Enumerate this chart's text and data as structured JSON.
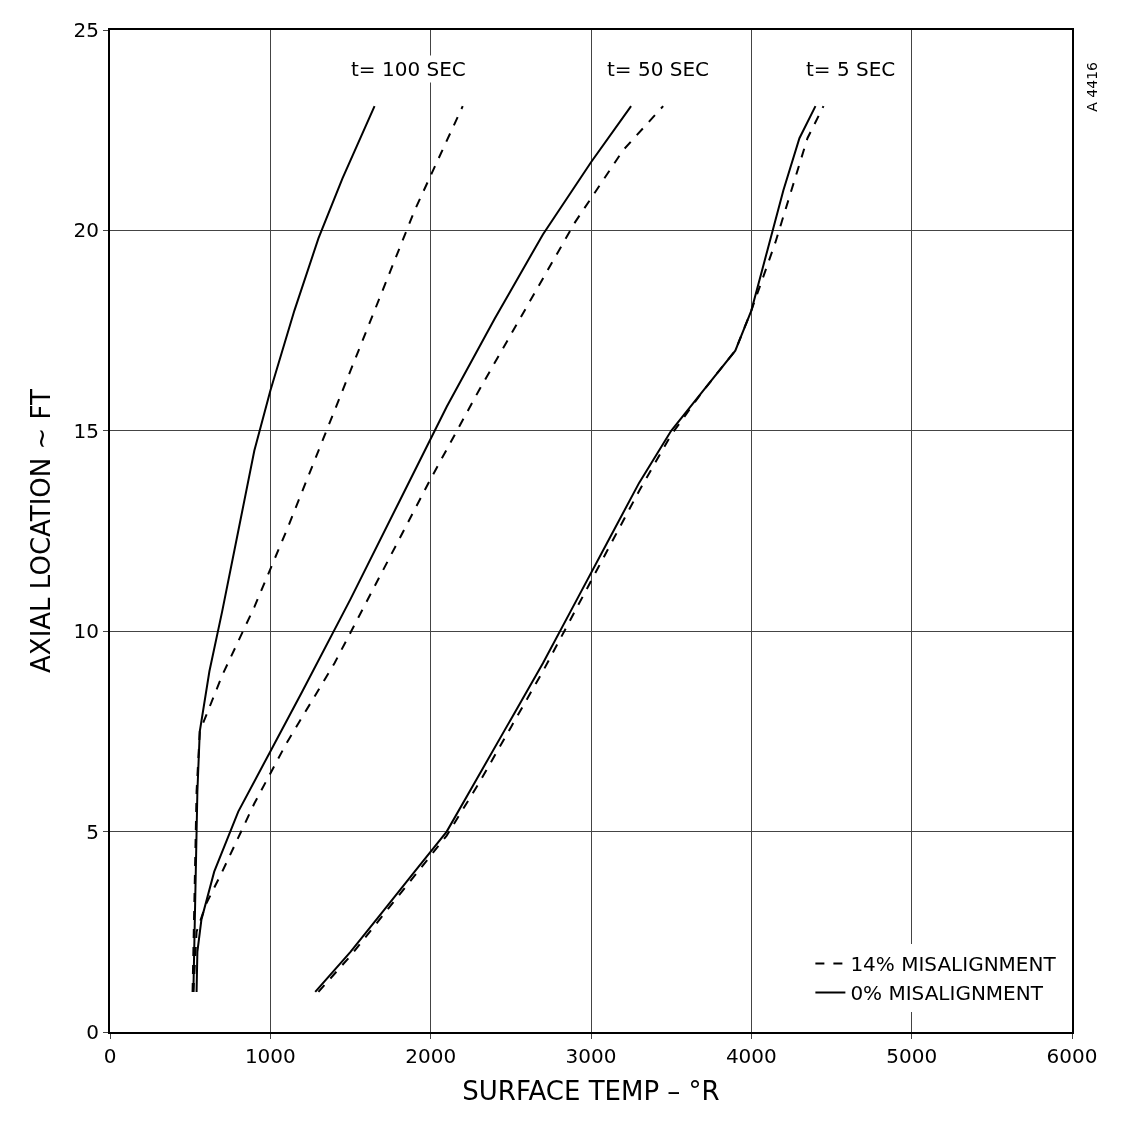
{
  "chart_data": {
    "type": "line",
    "xlabel": "SURFACE TEMP – °R",
    "ylabel": "AXIAL LOCATION ~ FT",
    "xlim": [
      0,
      6000
    ],
    "xticks": [
      0,
      1000,
      2000,
      3000,
      4000,
      5000,
      6000
    ],
    "ylim": [
      0,
      25
    ],
    "yticks": [
      0,
      5,
      10,
      15,
      20,
      25
    ],
    "grid": true,
    "legend": "bottom right",
    "marker": "none",
    "series": [
      {
        "name": "14% MISALIGNMENT",
        "color": "#000000",
        "line_style": "dashed",
        "x": [
          515,
          525,
          540,
          560,
          700,
          900,
          1100,
          1300,
          1500,
          1700,
          1900,
          2200
        ],
        "values": [
          1,
          3,
          6,
          7.5,
          8.9,
          10.6,
          12.5,
          14.5,
          16.5,
          18.5,
          20.5,
          23.1
        ]
      },
      {
        "name": "0% MISALIGNMENT",
        "color": "#000000",
        "line_style": "solid",
        "x": [
          520,
          530,
          545,
          560,
          620,
          700,
          800,
          900,
          1000,
          1150,
          1300,
          1450,
          1650
        ],
        "values": [
          1,
          3,
          6,
          7.5,
          9,
          10.5,
          12.5,
          14.5,
          16,
          18,
          19.8,
          21.3,
          23.1
        ]
      },
      {
        "color": "#000000",
        "line_style": "dashed",
        "x": [
          520,
          540,
          600,
          700,
          900,
          1100,
          1400,
          1700,
          2000,
          2300,
          2600,
          2900,
          3200,
          3450
        ],
        "values": [
          1,
          2.5,
          3.2,
          4,
          5.7,
          7.2,
          9.2,
          11.5,
          13.8,
          16,
          18.1,
          20.2,
          22,
          23.1
        ]
      },
      {
        "color": "#000000",
        "line_style": "solid",
        "x": [
          540,
          545,
          570,
          650,
          800,
          1000,
          1200,
          1500,
          1800,
          2100,
          2400,
          2700,
          3000,
          3250
        ],
        "values": [
          1,
          2,
          2.8,
          4,
          5.5,
          7,
          8.5,
          10.8,
          13.2,
          15.6,
          17.8,
          19.9,
          21.7,
          23.1
        ]
      },
      {
        "color": "#000000",
        "line_style": "dashed",
        "x": [
          1300,
          1500,
          1700,
          1900,
          2100,
          2300,
          2500,
          2700,
          2900,
          3100,
          3300,
          3500,
          3700,
          3900,
          4000,
          4150,
          4250,
          4350,
          4450
        ],
        "values": [
          1,
          1.9,
          2.9,
          3.9,
          4.9,
          6.2,
          7.6,
          9,
          10.5,
          12,
          13.5,
          14.9,
          16,
          17,
          18,
          19.7,
          21,
          22.3,
          23.1
        ]
      },
      {
        "color": "#000000",
        "line_style": "solid",
        "x": [
          1280,
          1500,
          1700,
          1900,
          2100,
          2300,
          2500,
          2700,
          2900,
          3100,
          3300,
          3500,
          3700,
          3900,
          4000,
          4100,
          4200,
          4300,
          4400
        ],
        "values": [
          1,
          2,
          3,
          4,
          5,
          6.4,
          7.8,
          9.2,
          10.7,
          12.2,
          13.7,
          15,
          16,
          17,
          18,
          19.5,
          21,
          22.3,
          23.1
        ]
      }
    ],
    "annotations": [
      "t= 100 SEC",
      "t= 50 SEC",
      "t= 5 SEC",
      "A 4416"
    ]
  }
}
